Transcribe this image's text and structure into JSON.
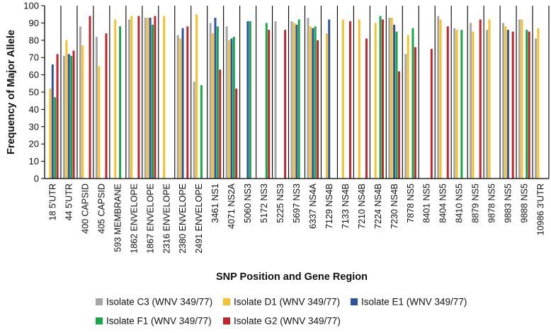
{
  "chart_data": {
    "type": "bar",
    "title": "",
    "xlabel": "SNP Position and Gene Region",
    "ylabel": "Frequency of Major Allele",
    "ylim": [
      0,
      100
    ],
    "yticks": [
      0,
      10,
      20,
      30,
      40,
      50,
      60,
      70,
      80,
      90,
      100
    ],
    "grid": "vertical separators between categories",
    "legend_position": "bottom",
    "categories": [
      "18 5'UTR",
      "44 5'UTR",
      "400 CAPSID",
      "405 CAPSID",
      "593 MEMBRANE",
      "1862 ENVELOPE",
      "1867 ENVELOPE",
      "2316 ENVELOPE",
      "2380 ENVELOPE",
      "2491 ENVELOPE",
      "3461 NS1",
      "4071  NS2A",
      "5060 NS3",
      "5172 NS3",
      "5225 NS3",
      "5697 NS3",
      "6337 NS4A",
      "7129 NS4B",
      "7133 NS4B",
      "7210 NS4B",
      "7224 NS4B",
      "7230 NS4B",
      "7878 NS5",
      "8401 NS5",
      "8404 NS5",
      "8410 NS5",
      "8879 NS5",
      "9878 NS5",
      "9883 NS5",
      "9888 NS5",
      "10986 3'UTR"
    ],
    "series": [
      {
        "name": "Isolate C3 (WNV 349/77)",
        "color": "#a6a6a6",
        "values": [
          null,
          71,
          88,
          82,
          null,
          92,
          93,
          null,
          83,
          56,
          90,
          88,
          null,
          null,
          91,
          91,
          93,
          null,
          null,
          null,
          null,
          93,
          72,
          null,
          94,
          87,
          90,
          86,
          90,
          92,
          81
        ]
      },
      {
        "name": "Isolate D1 (WNV 349/77)",
        "color": "#f5c22b",
        "values": [
          52,
          80,
          77,
          65,
          92,
          94,
          93,
          94,
          81,
          95,
          84,
          80,
          null,
          null,
          null,
          90,
          88,
          84,
          92,
          92,
          90,
          93,
          83,
          null,
          92,
          86,
          85,
          92,
          88,
          92,
          87
        ]
      },
      {
        "name": "Isolate E1 (WNV 349/77)",
        "color": "#2f53a1",
        "values": [
          66,
          72,
          null,
          null,
          null,
          null,
          93,
          null,
          87,
          null,
          93,
          81,
          91,
          null,
          null,
          89,
          87,
          92,
          null,
          null,
          null,
          89,
          null,
          null,
          null,
          null,
          null,
          null,
          86,
          null,
          null
        ]
      },
      {
        "name": "Isolate F1 (WNV 349/77)",
        "color": "#1aa64a",
        "values": [
          47,
          71,
          null,
          null,
          88,
          null,
          89,
          null,
          null,
          54,
          88,
          82,
          91,
          90,
          null,
          92,
          88,
          null,
          null,
          null,
          94,
          85,
          87,
          null,
          null,
          86,
          null,
          null,
          null,
          86,
          null
        ]
      },
      {
        "name": "Isolate G2 (WNV 349/77)",
        "color": "#c0262e",
        "values": [
          72,
          74,
          94,
          84,
          null,
          94,
          94,
          null,
          88,
          null,
          63,
          52,
          null,
          86,
          86,
          null,
          80,
          null,
          91,
          81,
          92,
          62,
          76,
          75,
          88,
          null,
          92,
          null,
          85,
          85,
          null
        ]
      }
    ]
  }
}
